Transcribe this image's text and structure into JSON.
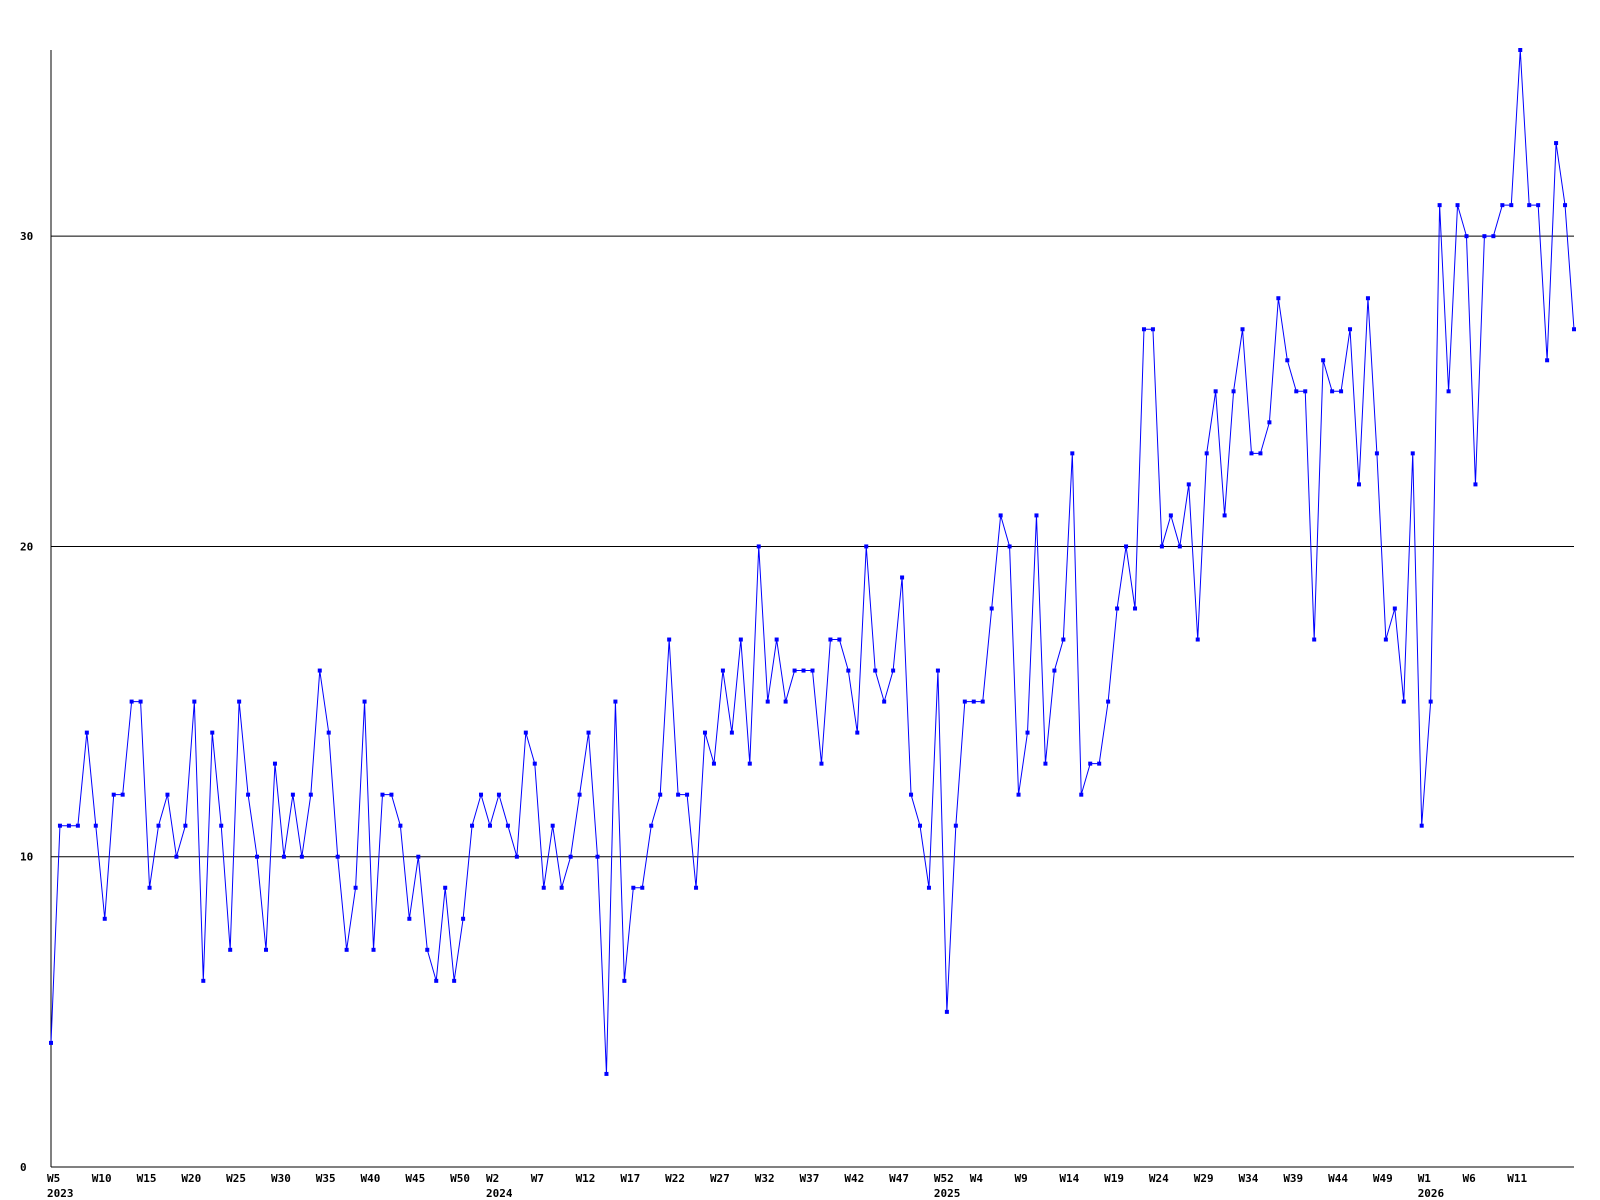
{
  "chart_data": {
    "type": "line",
    "title": "",
    "xlabel": "",
    "ylabel": "",
    "ylim": [
      0,
      36
    ],
    "y_ticks": [
      0,
      10,
      20,
      30
    ],
    "grid": "horizontal at y ticks",
    "legend": "none",
    "colors": {
      "series": "#0000ff",
      "grid": "#000000",
      "axis": "#000000"
    },
    "x_tick_labels": [
      {
        "week_index": 0,
        "label": "W5",
        "year": "2023"
      },
      {
        "week_index": 5,
        "label": "W10"
      },
      {
        "week_index": 10,
        "label": "W15"
      },
      {
        "week_index": 15,
        "label": "W20"
      },
      {
        "week_index": 20,
        "label": "W25"
      },
      {
        "week_index": 25,
        "label": "W30"
      },
      {
        "week_index": 30,
        "label": "W35"
      },
      {
        "week_index": 35,
        "label": "W40"
      },
      {
        "week_index": 40,
        "label": "W45"
      },
      {
        "week_index": 45,
        "label": "W50"
      },
      {
        "week_index": 49,
        "label": "W2",
        "year": "2024"
      },
      {
        "week_index": 54,
        "label": "W7"
      },
      {
        "week_index": 59,
        "label": "W12"
      },
      {
        "week_index": 64,
        "label": "W17"
      },
      {
        "week_index": 69,
        "label": "W22"
      },
      {
        "week_index": 74,
        "label": "W27"
      },
      {
        "week_index": 79,
        "label": "W32"
      },
      {
        "week_index": 84,
        "label": "W37"
      },
      {
        "week_index": 89,
        "label": "W42"
      },
      {
        "week_index": 94,
        "label": "W47"
      },
      {
        "week_index": 99,
        "label": "W52",
        "year": "2025"
      },
      {
        "week_index": 103,
        "label": "W4"
      },
      {
        "week_index": 108,
        "label": "W9"
      },
      {
        "week_index": 113,
        "label": "W14"
      },
      {
        "week_index": 118,
        "label": "W19"
      },
      {
        "week_index": 123,
        "label": "W24"
      },
      {
        "week_index": 128,
        "label": "W29"
      },
      {
        "week_index": 133,
        "label": "W34"
      },
      {
        "week_index": 138,
        "label": "W39"
      },
      {
        "week_index": 143,
        "label": "W44"
      },
      {
        "week_index": 148,
        "label": "W49"
      },
      {
        "week_index": 153,
        "label": "W1",
        "year": "2026"
      },
      {
        "week_index": 158,
        "label": "W6"
      },
      {
        "week_index": 163,
        "label": "W11"
      }
    ],
    "series": [
      {
        "values": [
          4,
          11,
          11,
          11,
          14,
          11,
          8,
          12,
          12,
          15,
          15,
          9,
          11,
          12,
          10,
          11,
          15,
          6,
          14,
          11,
          7,
          15,
          12,
          10,
          7,
          13,
          10,
          12,
          10,
          12,
          16,
          14,
          10,
          7,
          9,
          15,
          7,
          12,
          12,
          11,
          8,
          10,
          7,
          6,
          9,
          6,
          8,
          11,
          12,
          11,
          12,
          11,
          10,
          14,
          13,
          9,
          11,
          9,
          10,
          12,
          14,
          10,
          3,
          15,
          6,
          9,
          9,
          11,
          12,
          17,
          12,
          12,
          9,
          14,
          13,
          16,
          14,
          17,
          13,
          20,
          15,
          17,
          15,
          16,
          16,
          16,
          13,
          17,
          17,
          16,
          14,
          20,
          16,
          15,
          16,
          19,
          12,
          11,
          9,
          16,
          5,
          11,
          15,
          15,
          15,
          18,
          21,
          20,
          12,
          14,
          21,
          13,
          16,
          17,
          23,
          12,
          13,
          13,
          15,
          18,
          20,
          18,
          27,
          27,
          20,
          21,
          20,
          22,
          17,
          23,
          25,
          21,
          25,
          27,
          23,
          23,
          24,
          28,
          26,
          25,
          25,
          17,
          26,
          25,
          25,
          27,
          22,
          28,
          23,
          17,
          18,
          15,
          23,
          11,
          15,
          31,
          25,
          31,
          30,
          22,
          30,
          30,
          31,
          31,
          36,
          31,
          31,
          26,
          33,
          31,
          27
        ]
      }
    ]
  }
}
